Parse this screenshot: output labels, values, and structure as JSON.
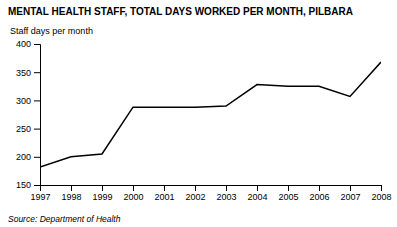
{
  "chart_data": {
    "type": "line",
    "title": "MENTAL HEALTH STAFF, TOTAL DAYS WORKED PER MONTH, PILBARA",
    "ylabel": "Staff days per month",
    "source": "Source: Department of Health",
    "x": [
      1997,
      1998,
      1999,
      2000,
      2001,
      2002,
      2003,
      2004,
      2005,
      2006,
      2007,
      2008
    ],
    "values": [
      182,
      200,
      205,
      288,
      288,
      288,
      290,
      328,
      325,
      325,
      307,
      368
    ],
    "color": "#000000",
    "xlim": [
      1997,
      2008
    ],
    "xticks": [
      1997,
      1998,
      1999,
      2000,
      2001,
      2002,
      2003,
      2004,
      2005,
      2006,
      2007,
      2008
    ],
    "ylim": [
      150,
      400
    ],
    "yticks": [
      150,
      200,
      250,
      300,
      350,
      400
    ],
    "grid": false
  }
}
